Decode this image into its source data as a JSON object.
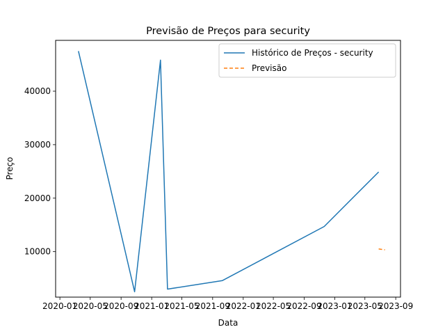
{
  "chart_data": {
    "type": "line",
    "title": "Previsão de Preços para security",
    "xlabel": "Data",
    "ylabel": "Preço",
    "x_ticks": [
      "2020-01",
      "2020-05",
      "2020-09",
      "2021-01",
      "2021-05",
      "2021-09",
      "2022-01",
      "2022-05",
      "2022-09",
      "2023-01",
      "2023-05",
      "2023-09"
    ],
    "y_ticks": [
      10000,
      20000,
      30000,
      40000
    ],
    "xlim": [
      "2019-12-15",
      "2023-09-20"
    ],
    "ylim": [
      1500,
      49500
    ],
    "grid": false,
    "legend_position": "top-right",
    "series": [
      {
        "name": "Histórico de Preços - security",
        "color": "#1f77b4",
        "style": "solid",
        "points": [
          {
            "x": "2020-03-15",
            "y": 47500
          },
          {
            "x": "2020-10-25",
            "y": 2500
          },
          {
            "x": "2021-02-05",
            "y": 45800
          },
          {
            "x": "2021-03-05",
            "y": 3000
          },
          {
            "x": "2021-10-10",
            "y": 4600
          },
          {
            "x": "2022-11-20",
            "y": 14700
          },
          {
            "x": "2023-06-25",
            "y": 24900
          }
        ]
      },
      {
        "name": "Previsão",
        "color": "#ff7f0e",
        "style": "dashed",
        "points": [
          {
            "x": "2023-06-25",
            "y": 10500
          },
          {
            "x": "2023-07-20",
            "y": 10350
          }
        ]
      }
    ]
  }
}
